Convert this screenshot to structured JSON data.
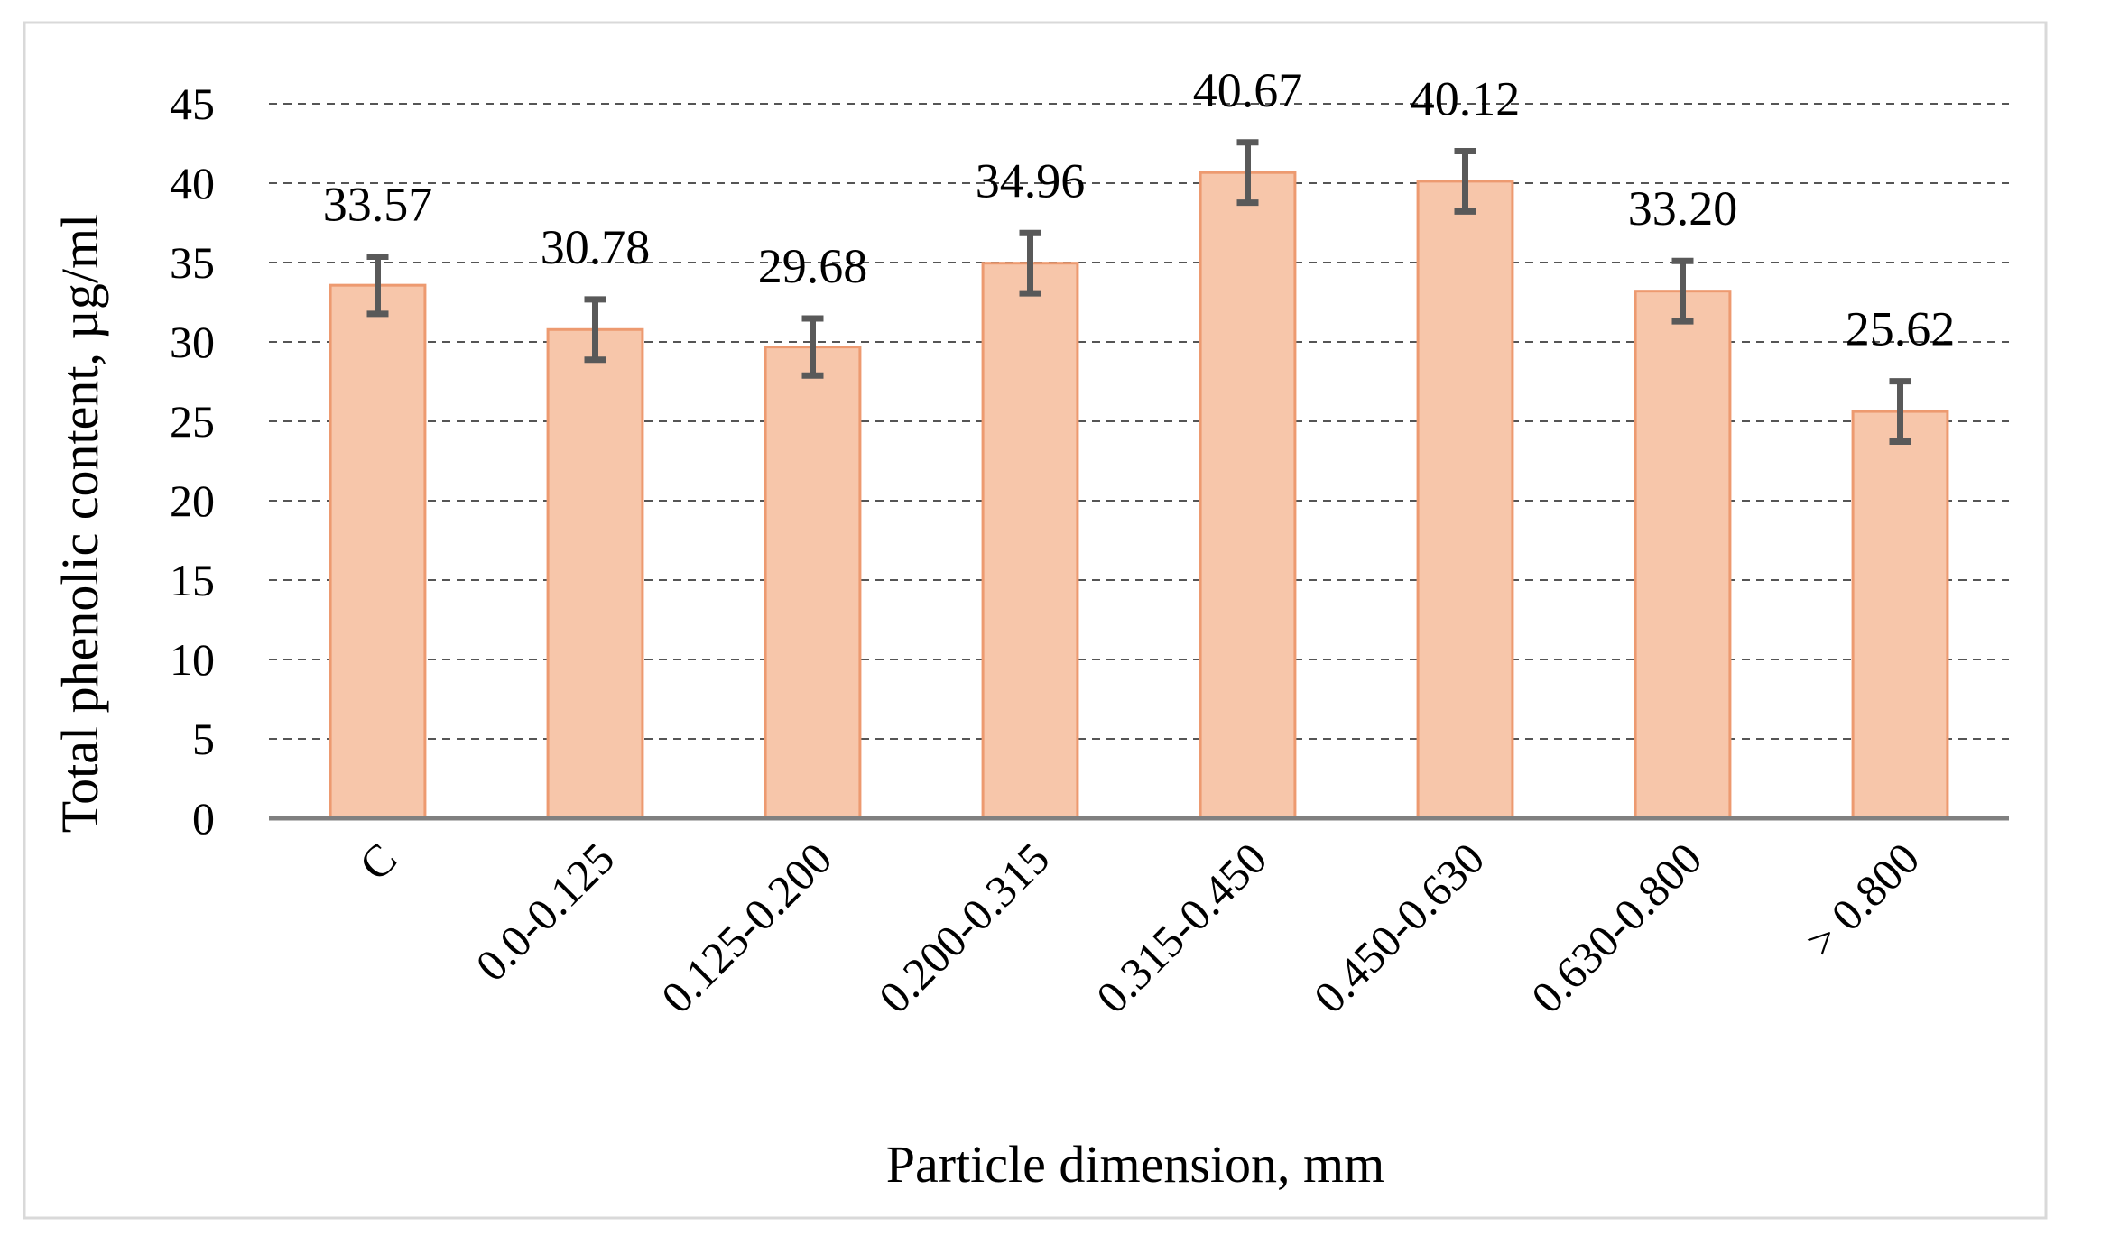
{
  "chart_data": {
    "type": "bar",
    "xlabel": "Particle dimension, mm",
    "ylabel": "Total phenolic content, µg/ml",
    "categories": [
      "C",
      "0.0-0.125",
      "0.125-0.200",
      "0.200-0.315",
      "0.315-0.450",
      "0.450-0.630",
      "0.630-0.800",
      "> 0.800"
    ],
    "values": [
      33.57,
      30.78,
      29.68,
      34.96,
      40.67,
      40.12,
      33.2,
      25.62
    ],
    "value_labels": [
      "33.57",
      "30.78",
      "29.68",
      "34.96",
      "40.67",
      "40.12",
      "33.20",
      "25.62"
    ],
    "error": [
      1.8,
      1.9,
      1.8,
      1.9,
      1.9,
      1.9,
      1.9,
      1.9
    ],
    "ylim": [
      0,
      45
    ],
    "yticks": [
      "0",
      "5",
      "10",
      "15",
      "20",
      "25",
      "30",
      "35",
      "40",
      "45"
    ],
    "grid": "horizontal dashed",
    "legend": "none",
    "colors": {
      "bar_fill": "#f7c6aa",
      "bar_stroke": "#ed9a70",
      "error_bar": "#595959",
      "axis": "#808080",
      "grid": "#555555",
      "border": "#d9d9d9"
    }
  }
}
